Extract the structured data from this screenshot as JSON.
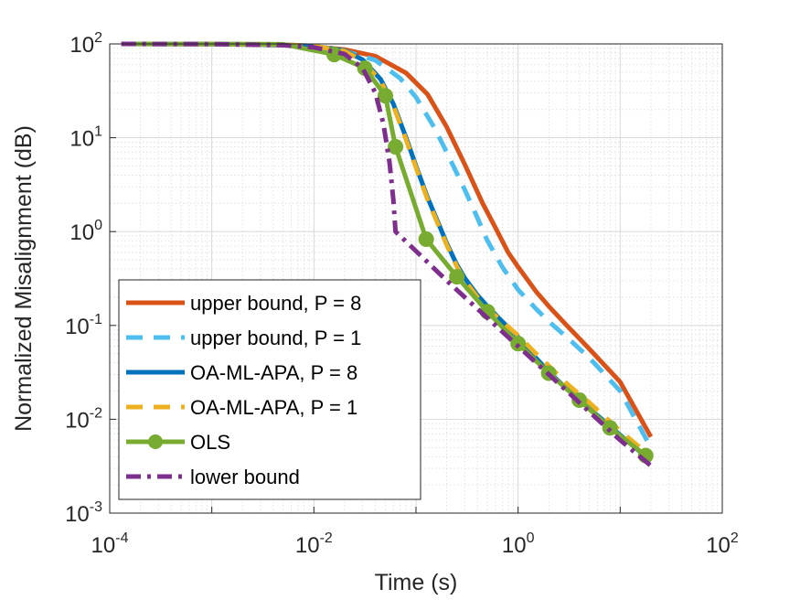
{
  "chart_data": {
    "type": "line",
    "xscale": "log",
    "yscale": "log",
    "xlabel": "Time (s)",
    "ylabel": "Normalized Misalignment (dB)",
    "xlim": [
      0.0001,
      100
    ],
    "ylim": [
      0.001,
      100
    ],
    "grid": true,
    "minor_grid": true,
    "legend_position": "bottom-left",
    "x_tick_labels": [
      {
        "value": 0.0001,
        "base": "10",
        "exp": "-4"
      },
      {
        "value": 0.01,
        "base": "10",
        "exp": "-2"
      },
      {
        "value": 1,
        "base": "10",
        "exp": "0"
      },
      {
        "value": 100,
        "base": "10",
        "exp": "2"
      }
    ],
    "y_tick_labels": [
      {
        "value": 0.001,
        "base": "10",
        "exp": "-3"
      },
      {
        "value": 0.01,
        "base": "10",
        "exp": "-2"
      },
      {
        "value": 0.1,
        "base": "10",
        "exp": "-1"
      },
      {
        "value": 1,
        "base": "10",
        "exp": "0"
      },
      {
        "value": 10,
        "base": "10",
        "exp": "1"
      },
      {
        "value": 100,
        "base": "10",
        "exp": "2"
      }
    ],
    "series": [
      {
        "name": "upper bound, P = 8",
        "color": "#D95319",
        "style": "solid",
        "marker": "none",
        "x": [
          0.00013,
          0.001,
          0.005,
          0.01,
          0.02,
          0.04,
          0.08,
          0.13,
          0.2,
          0.3,
          0.45,
          0.6,
          0.8,
          1,
          1.5,
          2,
          3,
          5,
          10,
          20
        ],
        "y": [
          100,
          99.5,
          97,
          94,
          87,
          74,
          49,
          29,
          13,
          5.2,
          2,
          1.1,
          0.6,
          0.42,
          0.23,
          0.16,
          0.1,
          0.056,
          0.025,
          0.0065
        ]
      },
      {
        "name": "upper bound, P = 1",
        "color": "#4DBEEE",
        "style": "dashed",
        "marker": "none",
        "x": [
          0.00013,
          0.001,
          0.005,
          0.01,
          0.02,
          0.04,
          0.07,
          0.1,
          0.15,
          0.2,
          0.3,
          0.4,
          0.5,
          0.7,
          1,
          1.5,
          2,
          3,
          5,
          10,
          20
        ],
        "y": [
          100,
          99.5,
          97,
          93,
          84,
          67,
          43,
          27,
          13,
          7,
          2.8,
          1.4,
          0.8,
          0.42,
          0.24,
          0.15,
          0.11,
          0.075,
          0.045,
          0.02,
          0.005
        ]
      },
      {
        "name": "OA-ML-APA, P = 8",
        "color": "#0072BD",
        "style": "solid",
        "marker": "none",
        "x": [
          0.00013,
          0.001,
          0.005,
          0.01,
          0.02,
          0.03,
          0.045,
          0.06,
          0.08,
          0.1,
          0.13,
          0.17,
          0.2,
          0.25,
          0.3,
          0.4,
          0.5,
          0.7,
          1,
          1.5,
          2,
          3,
          5,
          10,
          20
        ],
        "y": [
          100,
          99.8,
          98,
          95,
          85,
          68,
          42,
          23,
          10,
          5,
          2.3,
          1.15,
          0.75,
          0.45,
          0.32,
          0.21,
          0.16,
          0.11,
          0.075,
          0.045,
          0.032,
          0.021,
          0.013,
          0.0068,
          0.0036
        ]
      },
      {
        "name": "OA-ML-APA, P = 1",
        "color": "#EDB120",
        "style": "dashed",
        "marker": "none",
        "x": [
          0.00013,
          0.001,
          0.005,
          0.01,
          0.02,
          0.03,
          0.045,
          0.06,
          0.08,
          0.1,
          0.13,
          0.17,
          0.2,
          0.25,
          0.3,
          0.4,
          0.5,
          0.7,
          1,
          1.5,
          2,
          3,
          5,
          10,
          20
        ],
        "y": [
          100,
          99.8,
          98,
          95,
          84,
          66,
          40,
          22,
          9.5,
          4.8,
          2.2,
          1.1,
          0.72,
          0.43,
          0.3,
          0.2,
          0.15,
          0.11,
          0.078,
          0.05,
          0.037,
          0.024,
          0.015,
          0.0075,
          0.004
        ]
      },
      {
        "name": "OLS",
        "color": "#77AC30",
        "style": "solid",
        "marker": "circle",
        "x": [
          0.00013,
          0.001,
          0.005,
          0.0158,
          0.0316,
          0.0501,
          0.063,
          0.1259,
          0.2512,
          0.5012,
          1,
          1.9953,
          3.9811,
          7.9433,
          17.78
        ],
        "y": [
          100,
          99.8,
          99,
          77,
          55,
          28,
          8,
          0.83,
          0.33,
          0.14,
          0.064,
          0.031,
          0.016,
          0.0081,
          0.0041
        ]
      },
      {
        "name": "lower bound",
        "color": "#7E2F8E",
        "style": "dashdot",
        "marker": "none",
        "x": [
          0.00013,
          0.001,
          0.005,
          0.01,
          0.02,
          0.03,
          0.04,
          0.048,
          0.055,
          0.06,
          0.063,
          0.1,
          0.2,
          0.5,
          1,
          2,
          5,
          10,
          20
        ],
        "y": [
          100,
          99.5,
          97,
          92,
          78,
          55,
          30,
          14,
          5.5,
          2.2,
          1,
          0.62,
          0.3,
          0.12,
          0.06,
          0.03,
          0.012,
          0.006,
          0.0032
        ]
      }
    ]
  }
}
